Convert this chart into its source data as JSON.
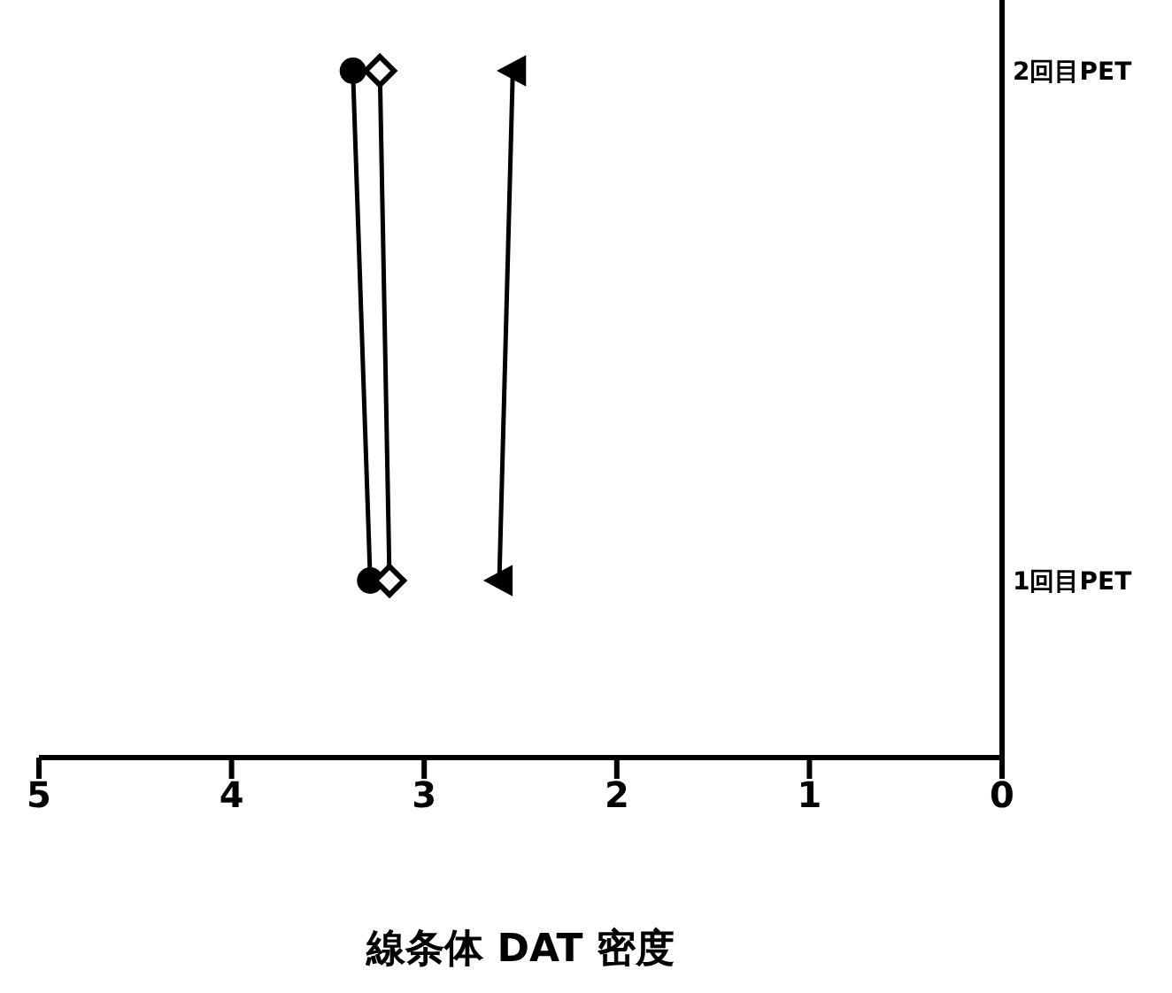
{
  "chart_data": {
    "type": "line",
    "orientation": "horizontal",
    "categories": [
      "2回目PET",
      "1回目PET"
    ],
    "xlabel": "線条体 DAT 密度",
    "xlim": [
      5,
      0
    ],
    "xticks": [
      5,
      4,
      3,
      2,
      1,
      0
    ],
    "grid": false,
    "legend": false,
    "series": [
      {
        "color": "#000000",
        "marker": "circle",
        "values": [
          3.37,
          3.28
        ]
      },
      {
        "color": "#000000",
        "marker": "diamond",
        "values": [
          3.23,
          3.18
        ]
      },
      {
        "color": "#000000",
        "marker": "triangle",
        "values": [
          2.54,
          2.61
        ]
      }
    ]
  }
}
